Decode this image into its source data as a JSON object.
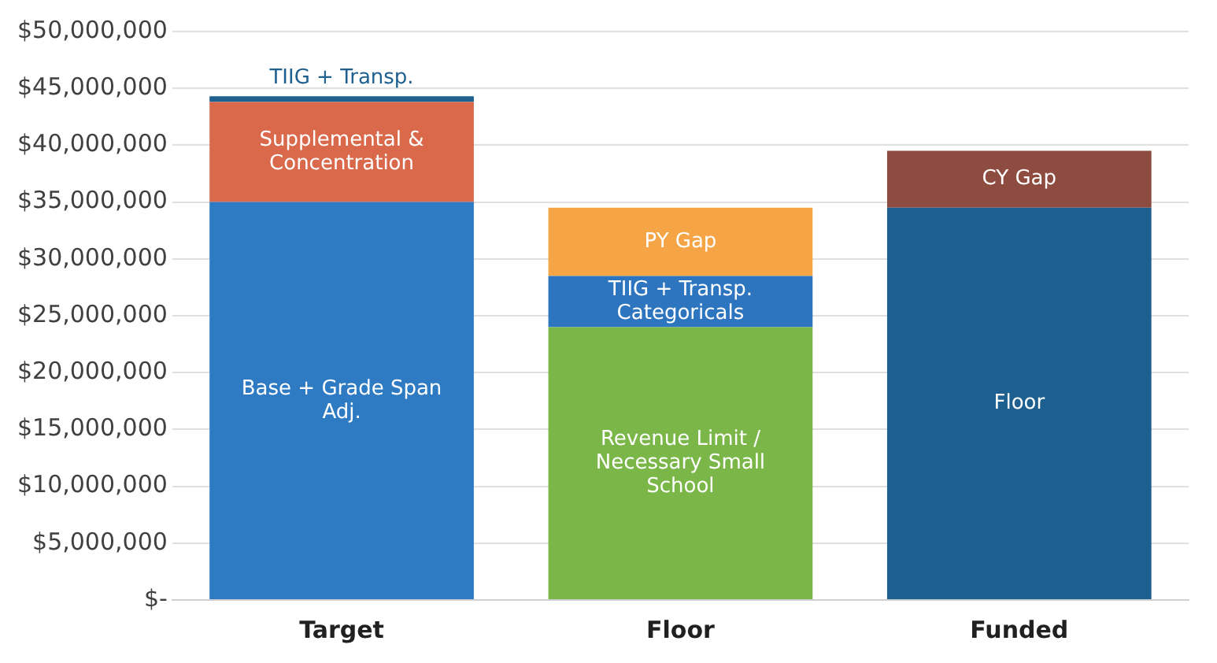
{
  "chart_data": {
    "type": "bar",
    "stacked": true,
    "categories": [
      "Target",
      "Floor",
      "Funded"
    ],
    "series": [
      {
        "name": "Base + Grade Span Adj.",
        "color": "#2e7bc4",
        "values": [
          35000000,
          null,
          null
        ]
      },
      {
        "name": "Revenue Limit / Necessary Small School",
        "color": "#7ab648",
        "values": [
          null,
          24000000,
          null
        ]
      },
      {
        "name": "Floor",
        "color": "#1d5f8e",
        "values": [
          null,
          null,
          34500000
        ]
      },
      {
        "name": "Supplemental & Concentration",
        "color": "#d9694a",
        "values": [
          8800000,
          null,
          null
        ]
      },
      {
        "name": "TIIG + Transp. Categoricals",
        "color": "#2e75c0",
        "values": [
          null,
          4500000,
          null
        ]
      },
      {
        "name": "CY Gap",
        "color": "#8e4b3f",
        "values": [
          null,
          null,
          5000000
        ]
      },
      {
        "name": "TIIG + Transp.",
        "color": "#1f6090",
        "values": [
          500000,
          null,
          null
        ]
      },
      {
        "name": "PY Gap",
        "color": "#f5a545",
        "values": [
          null,
          6000000,
          null
        ]
      }
    ],
    "ylim": [
      0,
      50000000
    ],
    "yticks": [
      {
        "value": 0,
        "label": "$-"
      },
      {
        "value": 5000000,
        "label": "$5,000,000"
      },
      {
        "value": 10000000,
        "label": "$10,000,000"
      },
      {
        "value": 15000000,
        "label": "$15,000,000"
      },
      {
        "value": 20000000,
        "label": "$20,000,000"
      },
      {
        "value": 25000000,
        "label": "$25,000,000"
      },
      {
        "value": 30000000,
        "label": "$30,000,000"
      },
      {
        "value": 35000000,
        "label": "$35,000,000"
      },
      {
        "value": 40000000,
        "label": "$40,000,000"
      },
      {
        "value": 45000000,
        "label": "$45,000,000"
      },
      {
        "value": 50000000,
        "label": "$50,000,000"
      }
    ],
    "grid": "y",
    "legend": false
  }
}
